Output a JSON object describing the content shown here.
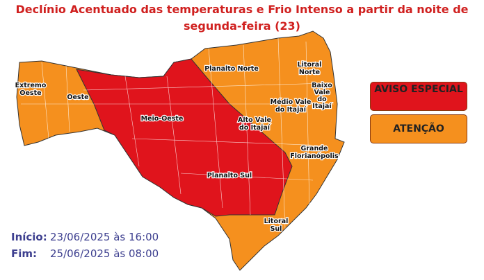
{
  "title": "Declínio Acentuado das temperaturas e Frio Intenso a partir da noite de segunda-feira (23)",
  "regions": {
    "extremo_oeste": [
      "Extremo",
      "Oeste"
    ],
    "oeste": "Oeste",
    "meio_oeste": "Meio-Oeste",
    "planalto_norte": "Planalto Norte",
    "litoral_norte": [
      "Litoral",
      "Norte"
    ],
    "medio_vale": [
      "Médio Vale",
      "do Itajaí"
    ],
    "baixo_vale": [
      "Baixo",
      "Vale",
      "do",
      "Itajaí"
    ],
    "alto_vale": [
      "Alto Vale",
      "do Itajaí"
    ],
    "grande_floripa": [
      "Grande",
      "Florianópolis"
    ],
    "planalto_sul": "Planalto Sul",
    "litoral_sul": [
      "Litoral",
      "Sul"
    ]
  },
  "legend": [
    {
      "label": "AVISO ESPECIAL",
      "color": "#e0141c"
    },
    {
      "label": "ATENÇÃO",
      "color": "#f5901e"
    }
  ],
  "period": {
    "start_label": "Início:",
    "start": "23/06/2025 às 16:00",
    "end_label": "Fim:",
    "end": "25/06/2025 às 08:00"
  }
}
